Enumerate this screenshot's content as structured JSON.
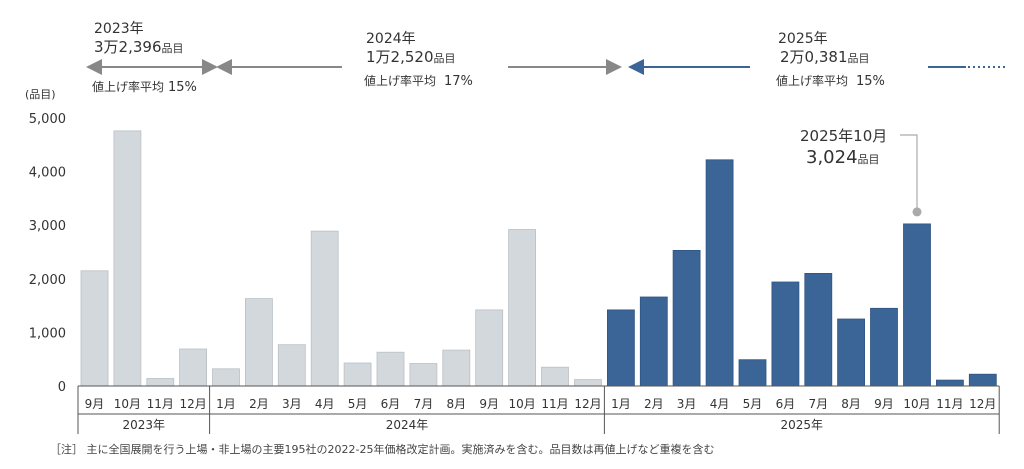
{
  "chart_data": {
    "type": "bar",
    "ylabel": "(品目)",
    "ylim": [
      0,
      5000
    ],
    "yticks": [
      "0",
      "1,000",
      "2,000",
      "3,000",
      "4,000",
      "5,000"
    ],
    "ytick_values": [
      0,
      1000,
      2000,
      3000,
      4000,
      5000
    ],
    "grid": false,
    "colors": {
      "past": "#d2d8dc",
      "current": "#3b6597",
      "arrow_gray": "#888888",
      "arrow_blue": "#3b6597"
    },
    "years": [
      {
        "label": "2023年",
        "months": [
          "9月",
          "10月",
          "11月",
          "12月"
        ],
        "values": [
          2150,
          4760,
          140,
          690
        ],
        "highlight": false
      },
      {
        "label": "2024年",
        "months": [
          "1月",
          "2月",
          "3月",
          "4月",
          "5月",
          "6月",
          "7月",
          "8月",
          "9月",
          "10月",
          "11月",
          "12月"
        ],
        "values": [
          320,
          1630,
          770,
          2890,
          430,
          630,
          420,
          670,
          1420,
          2920,
          350,
          120
        ],
        "highlight": false
      },
      {
        "label": "2025年",
        "months": [
          "1月",
          "2月",
          "3月",
          "4月",
          "5月",
          "6月",
          "7月",
          "8月",
          "9月",
          "10月",
          "11月",
          "12月"
        ],
        "values": [
          1420,
          1660,
          2530,
          4220,
          490,
          1940,
          2100,
          1250,
          1450,
          3024,
          110,
          220
        ],
        "highlight": true
      }
    ],
    "summaries": [
      {
        "year": "2023年",
        "count": "3万2,396",
        "unit": "品目",
        "rate_label": "値上げ率平均",
        "rate": "15%"
      },
      {
        "year": "2024年",
        "count": "1万2,520",
        "unit": "品目",
        "rate_label": "値上げ率平均",
        "rate": "17%"
      },
      {
        "year": "2025年",
        "count": "2万0,381",
        "unit": "品目",
        "rate_label": "値上げ率平均",
        "rate": "15%"
      }
    ],
    "callout": {
      "label": "2025年10月",
      "value": "3,024",
      "unit": "品目"
    }
  },
  "footnote": "［注］ 主に全国展開を行う上場・非上場の主要195社の2022-25年価格改定計画。実施済みを含む。品目数は再値上げなど重複を含む"
}
